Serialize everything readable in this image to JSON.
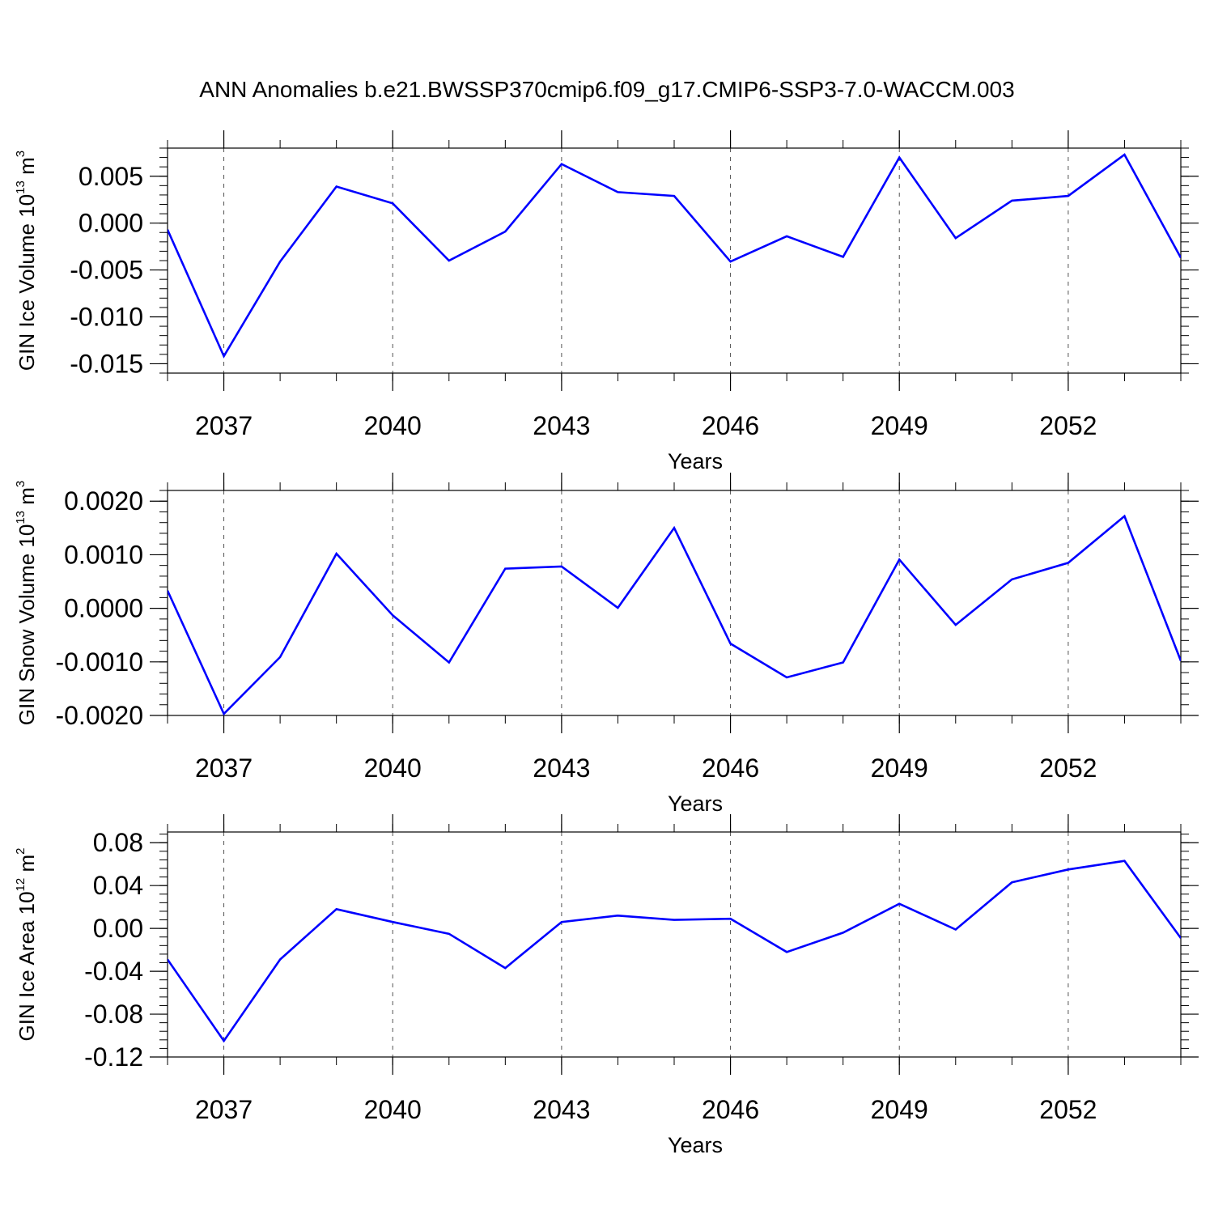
{
  "title": "ANN Anomalies b.e21.BWSSP370cmip6.f09_g17.CMIP6-SSP3-7.0-WACCM.003",
  "chart_data": [
    {
      "type": "line",
      "ylabel": {
        "text": "GIN Ice Volume 10",
        "exp": "13",
        "unit": " m",
        "unit_exp": "3"
      },
      "xlabel": "Years",
      "xlim": [
        2036,
        2054
      ],
      "xticks": [
        2037,
        2040,
        2043,
        2046,
        2049,
        2052
      ],
      "ylim": [
        -0.016,
        0.008
      ],
      "yticks": [
        -0.015,
        -0.01,
        -0.005,
        0.0,
        0.005
      ],
      "ytick_labels": [
        "-0.015",
        "-0.010",
        "-0.005",
        "0.000",
        "0.005"
      ],
      "line_color": "#0000ff",
      "x": [
        2036,
        2037,
        2038,
        2039,
        2040,
        2041,
        2042,
        2043,
        2044,
        2045,
        2046,
        2047,
        2048,
        2049,
        2050,
        2051,
        2052,
        2053,
        2054
      ],
      "values": [
        -0.0007,
        -0.0142,
        -0.0041,
        0.0039,
        0.0021,
        -0.004,
        -0.0009,
        0.0063,
        0.0033,
        0.0029,
        -0.0041,
        -0.0014,
        -0.0036,
        0.007,
        -0.0016,
        0.0024,
        0.0029,
        0.0073,
        -0.0037
      ]
    },
    {
      "type": "line",
      "ylabel": {
        "text": "GIN Snow Volume 10",
        "exp": "13",
        "unit": " m",
        "unit_exp": "3"
      },
      "xlabel": "Years",
      "xlim": [
        2036,
        2054
      ],
      "xticks": [
        2037,
        2040,
        2043,
        2046,
        2049,
        2052
      ],
      "ylim": [
        -0.002,
        0.0022
      ],
      "yticks": [
        -0.002,
        -0.001,
        0.0,
        0.001,
        0.002
      ],
      "ytick_labels": [
        "-0.0020",
        "-0.0010",
        "0.0000",
        "0.0010",
        "0.0020"
      ],
      "line_color": "#0000ff",
      "x": [
        2036,
        2037,
        2038,
        2039,
        2040,
        2041,
        2042,
        2043,
        2044,
        2045,
        2046,
        2047,
        2048,
        2049,
        2050,
        2051,
        2052,
        2053,
        2054
      ],
      "values": [
        0.00033,
        -0.00197,
        -0.00091,
        0.00102,
        -0.00013,
        -0.00101,
        0.00074,
        0.00078,
        1e-05,
        0.0015,
        -0.00066,
        -0.00129,
        -0.00101,
        0.00091,
        -0.00031,
        0.00054,
        0.00085,
        0.00172,
        -0.00098
      ]
    },
    {
      "type": "line",
      "ylabel": {
        "text": "GIN Ice Area 10",
        "exp": "12",
        "unit": " m",
        "unit_exp": "2"
      },
      "xlabel": "Years",
      "xlim": [
        2036,
        2054
      ],
      "xticks": [
        2037,
        2040,
        2043,
        2046,
        2049,
        2052
      ],
      "ylim": [
        -0.12,
        0.09
      ],
      "yticks": [
        -0.12,
        -0.08,
        -0.04,
        0.0,
        0.04,
        0.08
      ],
      "ytick_labels": [
        "-0.12",
        "-0.08",
        "-0.04",
        "0.00",
        "0.04",
        "0.08"
      ],
      "line_color": "#0000ff",
      "x": [
        2036,
        2037,
        2038,
        2039,
        2040,
        2041,
        2042,
        2043,
        2044,
        2045,
        2046,
        2047,
        2048,
        2049,
        2050,
        2051,
        2052,
        2053,
        2054
      ],
      "values": [
        -0.029,
        -0.105,
        -0.029,
        0.018,
        0.006,
        -0.005,
        -0.037,
        0.006,
        0.012,
        0.008,
        0.009,
        -0.022,
        -0.004,
        0.023,
        -0.001,
        0.043,
        0.055,
        0.063,
        -0.009
      ]
    }
  ]
}
